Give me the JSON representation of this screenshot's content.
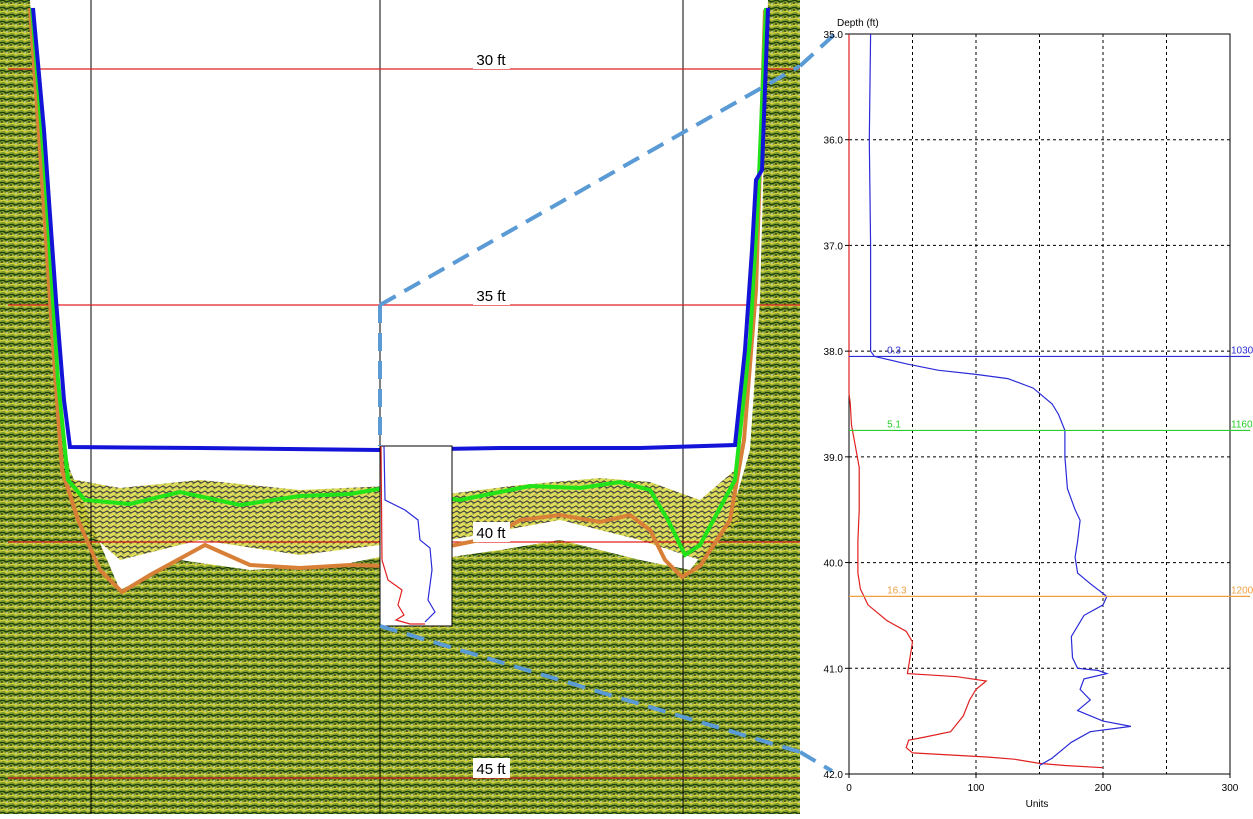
{
  "colors": {
    "bottom_line": "#1414d8",
    "layer1_line": "#22e21a",
    "layer2_line": "#d98038",
    "depth_line": "#e02020",
    "sediment_dark": "#2f6b14",
    "sediment_mid": "#6f8f2a",
    "sediment_yellow": "#d7d230",
    "connector": "#5b9bd5",
    "profile_red": "#e02020",
    "profile_blue": "#2b2bd8",
    "marker_blue": "#2b2bd8",
    "marker_green": "#2ccd2c",
    "marker_orange": "#f0a040",
    "grid": "#000000"
  },
  "echogram": {
    "depth_labels": [
      "30 ft",
      "35 ft",
      "40 ft",
      "45 ft"
    ]
  },
  "chart_data": {
    "type": "line",
    "title": "",
    "ylabel": "Depth (ft)",
    "xlabel": "Units",
    "xlim": [
      0,
      300
    ],
    "ylim": [
      35.0,
      42.0
    ],
    "x_ticks": [
      "0",
      "100",
      "200",
      "300"
    ],
    "y_ticks": [
      "35.0",
      "36.0",
      "37.0",
      "38.0",
      "39.0",
      "40.0",
      "41.0",
      "42.0"
    ],
    "grid": true,
    "series": [
      {
        "color": "red",
        "points": [
          [
            0,
            35.0
          ],
          [
            0,
            38.4
          ],
          [
            1,
            38.5
          ],
          [
            2,
            38.7
          ],
          [
            5,
            38.9
          ],
          [
            8,
            39.1
          ],
          [
            8,
            39.5
          ],
          [
            7,
            39.8
          ],
          [
            7,
            40.1
          ],
          [
            9,
            40.25
          ],
          [
            15,
            40.4
          ],
          [
            30,
            40.55
          ],
          [
            45,
            40.65
          ],
          [
            50,
            40.75
          ],
          [
            48,
            40.9
          ],
          [
            46,
            41.05
          ],
          [
            85,
            41.08
          ],
          [
            108,
            41.12
          ],
          [
            100,
            41.2
          ],
          [
            95,
            41.3
          ],
          [
            90,
            41.45
          ],
          [
            80,
            41.6
          ],
          [
            60,
            41.65
          ],
          [
            47,
            41.68
          ],
          [
            45,
            41.75
          ],
          [
            50,
            41.8
          ],
          [
            80,
            41.82
          ],
          [
            110,
            41.84
          ],
          [
            130,
            41.86
          ],
          [
            150,
            41.9
          ],
          [
            170,
            41.92
          ],
          [
            200,
            41.94
          ]
        ]
      },
      {
        "color": "blue",
        "points": [
          [
            17,
            35.0
          ],
          [
            16,
            36.0
          ],
          [
            17,
            37.0
          ],
          [
            17,
            38.0
          ],
          [
            20,
            38.05
          ],
          [
            45,
            38.12
          ],
          [
            70,
            38.18
          ],
          [
            100,
            38.22
          ],
          [
            125,
            38.26
          ],
          [
            145,
            38.35
          ],
          [
            160,
            38.5
          ],
          [
            165,
            38.6
          ],
          [
            170,
            38.75
          ],
          [
            170,
            39.0
          ],
          [
            172,
            39.3
          ],
          [
            178,
            39.5
          ],
          [
            182,
            39.6
          ],
          [
            180,
            39.8
          ],
          [
            178,
            39.95
          ],
          [
            180,
            40.1
          ],
          [
            190,
            40.2
          ],
          [
            203,
            40.32
          ],
          [
            200,
            40.4
          ],
          [
            185,
            40.5
          ],
          [
            175,
            40.7
          ],
          [
            176,
            40.9
          ],
          [
            180,
            41.0
          ],
          [
            196,
            41.02
          ],
          [
            203,
            41.05
          ],
          [
            185,
            41.1
          ],
          [
            182,
            41.2
          ],
          [
            190,
            41.3
          ],
          [
            180,
            41.4
          ],
          [
            200,
            41.5
          ],
          [
            222,
            41.55
          ],
          [
            190,
            41.6
          ],
          [
            175,
            41.7
          ],
          [
            170,
            41.75
          ],
          [
            160,
            41.85
          ],
          [
            150,
            41.92
          ]
        ]
      }
    ],
    "annotations": [
      {
        "depth": 38.05,
        "color": "blue",
        "left_value": "0.3",
        "right_value": "1030"
      },
      {
        "depth": 38.75,
        "color": "green",
        "left_value": "5.1",
        "right_value": "1160"
      },
      {
        "depth": 40.32,
        "color": "orange",
        "left_value": "16.3",
        "right_value": "1200"
      }
    ]
  }
}
